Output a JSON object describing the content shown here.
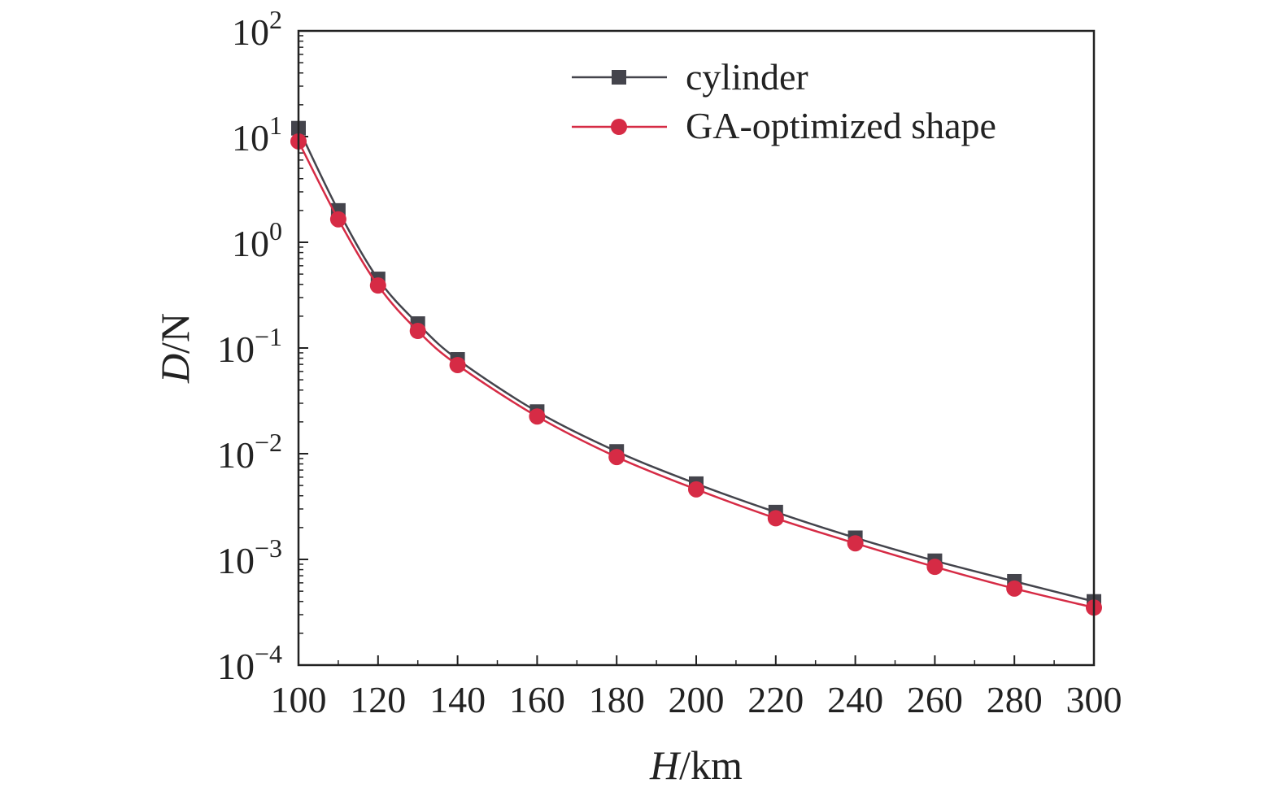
{
  "chart_data": {
    "type": "line",
    "xlabel": {
      "italic": "H",
      "rest": "/km"
    },
    "ylabel": {
      "italic": "D",
      "rest": "/N"
    },
    "x_scale": "linear",
    "y_scale": "log",
    "xlim": [
      100,
      300
    ],
    "ylim": [
      0.0001,
      100
    ],
    "x_ticks": [
      100,
      120,
      140,
      160,
      180,
      200,
      220,
      240,
      260,
      280,
      300
    ],
    "x_tick_labels": [
      "100",
      "120",
      "140",
      "160",
      "180",
      "200",
      "220",
      "240",
      "260",
      "280",
      "300"
    ],
    "y_ticks": [
      {
        "value": 100,
        "base": "10",
        "exp": "2"
      },
      {
        "value": 10,
        "base": "10",
        "exp": "1"
      },
      {
        "value": 1,
        "base": "10",
        "exp": "0"
      },
      {
        "value": 0.1,
        "base": "10",
        "exp": "−1"
      },
      {
        "value": 0.01,
        "base": "10",
        "exp": "−2"
      },
      {
        "value": 0.001,
        "base": "10",
        "exp": "−3"
      },
      {
        "value": 0.0001,
        "base": "10",
        "exp": "−4"
      }
    ],
    "grid": false,
    "legend_position": "top-right",
    "x": [
      100,
      110,
      120,
      130,
      140,
      160,
      180,
      200,
      220,
      240,
      260,
      280,
      300
    ],
    "series": [
      {
        "name": "cylinder",
        "marker": "square",
        "color": "#44444c",
        "values": [
          12,
          2.0,
          0.45,
          0.17,
          0.078,
          0.025,
          0.0105,
          0.0052,
          0.0028,
          0.0016,
          0.00097,
          0.00062,
          0.0004
        ]
      },
      {
        "name": "GA-optimized shape",
        "marker": "circle",
        "color": "#d62b45",
        "values": [
          9.0,
          1.65,
          0.39,
          0.145,
          0.069,
          0.0225,
          0.0093,
          0.0046,
          0.00245,
          0.00142,
          0.00085,
          0.00053,
          0.00035
        ]
      }
    ]
  }
}
